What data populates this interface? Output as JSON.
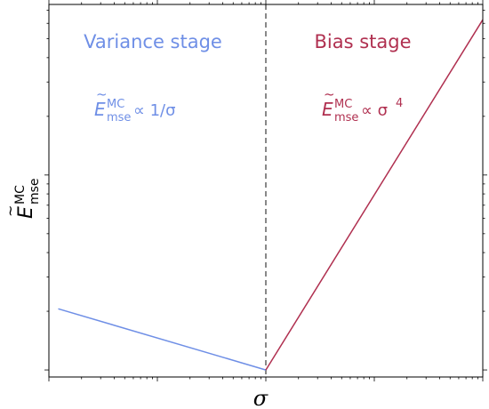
{
  "chart_data": {
    "type": "line",
    "title": "",
    "xlabel": "σ",
    "ylabel": "Ẽ_mse^MC",
    "x_scale": "log",
    "y_scale": "log",
    "xlim": [
      0.01,
      100
    ],
    "ylim": [
      0.92,
      75
    ],
    "x_ticks_labeled": [],
    "y_ticks_labeled": [],
    "grid": false,
    "legend": "none",
    "threshold": {
      "x": 1,
      "style": "dashed",
      "color": "#555555"
    },
    "series": [
      {
        "name": "Variance stage",
        "color": "#6f8fe6",
        "x": [
          0.0122,
          1
        ],
        "y": [
          2.06,
          1
        ]
      },
      {
        "name": "Bias stage",
        "color": "#b03050",
        "x": [
          1,
          100
        ],
        "y": [
          1,
          62.6
        ]
      }
    ],
    "annotations": {
      "variance_title": "Variance stage",
      "bias_title": "Bias stage",
      "variance_formula": {
        "base": "E",
        "sup": "MC",
        "sub": "mse",
        "rel": " ∝ 1/σ"
      },
      "bias_formula": {
        "base": "E",
        "sup": "MC",
        "sub": "mse",
        "rel": " ∝ σ",
        "power": "4"
      }
    }
  }
}
